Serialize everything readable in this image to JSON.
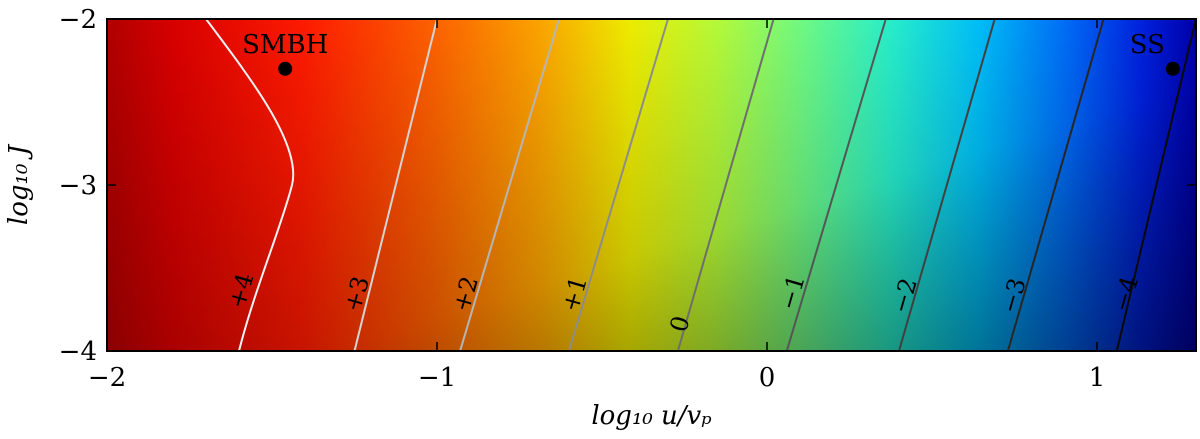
{
  "chart_data": {
    "type": "heatmap",
    "title": "",
    "xlabel": "log₁₀ u/vₚ",
    "ylabel": "log₁₀ J",
    "xlim": [
      -2,
      1.3
    ],
    "ylim": [
      -4,
      -2
    ],
    "x_ticks": [
      {
        "value": -2,
        "label": "−2"
      },
      {
        "value": -1,
        "label": "−1"
      },
      {
        "value": 0,
        "label": "0"
      },
      {
        "value": 1,
        "label": "1"
      }
    ],
    "y_ticks": [
      {
        "value": -2,
        "label": "−2"
      },
      {
        "value": -3,
        "label": "−3"
      },
      {
        "value": -4,
        "label": "−4"
      }
    ],
    "colormap": "jet",
    "contours": [
      {
        "label": "+4",
        "x_bottom": -1.6,
        "x_top": -1.7,
        "x_mid": -1.5,
        "color": "#f2f2f2",
        "label_x": -1.57,
        "label_y": -3.65
      },
      {
        "label": "+3",
        "x_bottom": -1.25,
        "x_top": -1.0,
        "color": "#d4d4d4",
        "label_x": -1.22,
        "label_y": -3.67
      },
      {
        "label": "+2",
        "x_bottom": -0.93,
        "x_top": -0.63,
        "color": "#b5b5b5",
        "label_x": -0.89,
        "label_y": -3.67
      },
      {
        "label": "+1",
        "x_bottom": -0.6,
        "x_top": -0.3,
        "color": "#8c8c8c",
        "label_x": -0.56,
        "label_y": -3.67
      },
      {
        "label": "0",
        "x_bottom": -0.27,
        "x_top": 0.02,
        "color": "#6e6e6e",
        "label_x": -0.24,
        "label_y": -3.85
      },
      {
        "label": "−1",
        "x_bottom": 0.06,
        "x_top": 0.36,
        "color": "#555555",
        "label_x": 0.1,
        "label_y": -3.66
      },
      {
        "label": "−2",
        "x_bottom": 0.4,
        "x_top": 0.69,
        "color": "#404040",
        "label_x": 0.44,
        "label_y": -3.68
      },
      {
        "label": "−3",
        "x_bottom": 0.73,
        "x_top": 1.02,
        "color": "#262626",
        "label_x": 0.77,
        "label_y": -3.68
      },
      {
        "label": "−4",
        "x_bottom": 1.06,
        "x_top": 1.3,
        "color": "#0a0a0a",
        "label_x": 1.11,
        "label_y": -3.67
      }
    ],
    "points": [
      {
        "label": "SMBH",
        "x": -1.46,
        "y": -2.3
      },
      {
        "label": "SS",
        "x": 1.23,
        "y": -2.3
      }
    ]
  }
}
